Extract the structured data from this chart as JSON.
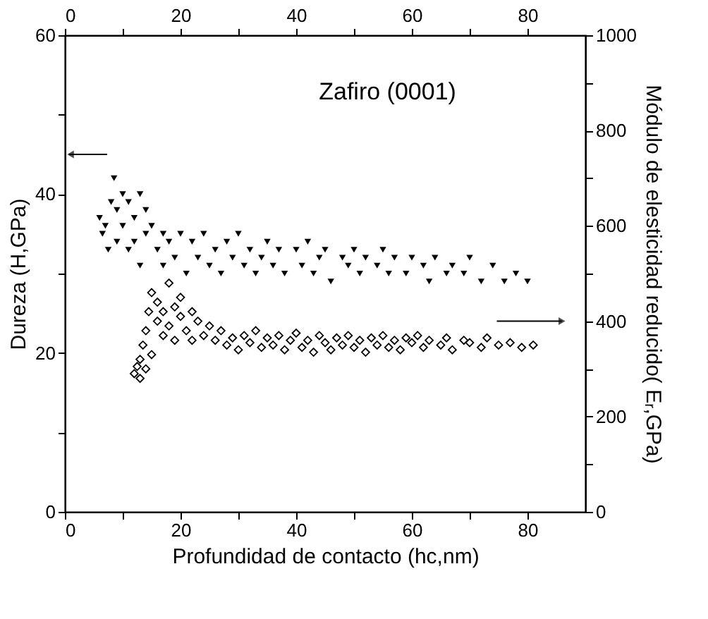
{
  "chart_data": {
    "type": "scatter",
    "title": "Zafiro (0001)",
    "xlabel": "Profundidad de contacto (hc,nm)",
    "ylabel": "Dureza (H,GPa)",
    "y2label": "Módulo de elesticidad reducido( Eᵣ,GPa)",
    "xlim": [
      0,
      90
    ],
    "xticks": [
      0,
      {
        "value": 10,
        "label": null
      },
      20,
      {
        "value": 30,
        "label": null
      },
      40,
      {
        "value": 50,
        "label": null
      },
      60,
      {
        "value": 70,
        "label": null
      },
      80
    ],
    "x2lim": [
      0,
      90
    ],
    "x2ticks": [
      0,
      {
        "value": 10,
        "label": null
      },
      20,
      {
        "value": 30,
        "label": null
      },
      40,
      {
        "value": 50,
        "label": null
      },
      60,
      {
        "value": 70,
        "label": null
      },
      80
    ],
    "ylim": [
      0,
      60
    ],
    "yticks": [
      0,
      {
        "value": 10,
        "label": null
      },
      20,
      {
        "value": 30,
        "label": null
      },
      40,
      {
        "value": 50,
        "label": null
      },
      60
    ],
    "y2lim": [
      0,
      1000
    ],
    "y2ticks": [
      0,
      {
        "value": 100,
        "label": null
      },
      200,
      {
        "value": 300,
        "label": null
      },
      400,
      {
        "value": 500,
        "label": null
      },
      600,
      {
        "value": 700,
        "label": null
      },
      800,
      {
        "value": 900,
        "label": null
      },
      1000
    ],
    "grid": false,
    "series": [
      {
        "color": "#000000",
        "marker": "triangle",
        "x": [
          6,
          6.5,
          7,
          7.5,
          8,
          8.5,
          9,
          9,
          10,
          10,
          11,
          11,
          12,
          12,
          13,
          13,
          14,
          14,
          15,
          16,
          17,
          17,
          18,
          19,
          20,
          21,
          22,
          23,
          24,
          25,
          26,
          27,
          28,
          29,
          30,
          31,
          32,
          33,
          34,
          35,
          36,
          37,
          38,
          40,
          41,
          42,
          43,
          44,
          45,
          46,
          48,
          49,
          50,
          51,
          52,
          54,
          55,
          56,
          57,
          59,
          60,
          62,
          63,
          64,
          66,
          67,
          69,
          70,
          72,
          74,
          76,
          78,
          80
        ],
        "values": [
          37,
          35,
          36,
          33,
          39,
          42,
          38,
          34,
          40,
          36,
          39,
          33,
          37,
          34,
          40,
          31,
          38,
          35,
          36,
          33,
          35,
          31,
          34,
          32,
          35,
          30,
          34,
          32,
          35,
          31,
          33,
          30,
          34,
          32,
          35,
          31,
          33,
          30,
          32,
          34,
          31,
          33,
          30,
          33,
          31,
          34,
          30,
          32,
          33,
          29,
          32,
          31,
          33,
          30,
          32,
          31,
          33,
          30,
          32,
          30,
          32,
          31,
          29,
          32,
          30,
          31,
          30,
          32,
          29,
          31,
          29,
          30,
          29
        ]
      },
      {
        "color": "#000000",
        "marker": "diamond",
        "axis": "y2",
        "x": [
          12,
          12.5,
          13,
          13,
          13.5,
          14,
          14,
          14.5,
          15,
          15,
          16,
          16,
          17,
          17,
          18,
          18,
          19,
          19,
          20,
          20,
          21,
          22,
          22,
          23,
          24,
          25,
          26,
          27,
          28,
          29,
          30,
          31,
          32,
          33,
          34,
          35,
          36,
          37,
          38,
          39,
          40,
          41,
          42,
          43,
          44,
          45,
          46,
          47,
          48,
          49,
          50,
          51,
          52,
          53,
          54,
          55,
          56,
          57,
          58,
          59,
          60,
          61,
          62,
          63,
          65,
          66,
          67,
          69,
          70,
          72,
          73,
          75,
          77,
          79,
          81
        ],
        "values": [
          290,
          305,
          280,
          320,
          350,
          300,
          380,
          420,
          330,
          460,
          400,
          440,
          370,
          420,
          480,
          390,
          430,
          360,
          410,
          450,
          380,
          420,
          360,
          400,
          370,
          390,
          360,
          380,
          350,
          365,
          340,
          370,
          355,
          380,
          345,
          365,
          350,
          370,
          340,
          360,
          375,
          345,
          360,
          335,
          370,
          355,
          340,
          365,
          350,
          370,
          345,
          360,
          335,
          365,
          350,
          370,
          345,
          360,
          340,
          365,
          355,
          370,
          345,
          360,
          350,
          365,
          340,
          360,
          355,
          345,
          365,
          350,
          355,
          345,
          350
        ]
      }
    ]
  }
}
